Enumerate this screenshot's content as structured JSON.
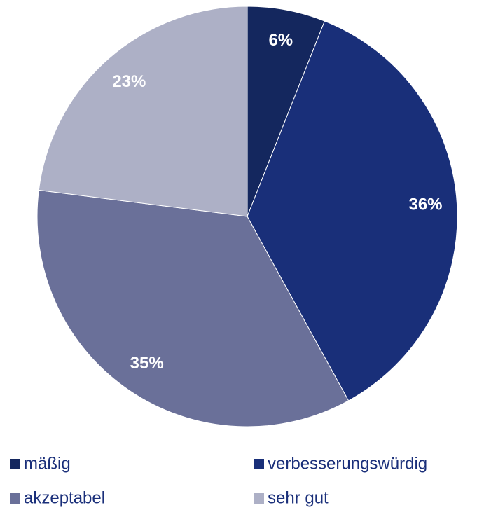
{
  "chart_data": {
    "type": "pie",
    "categories": [
      "mäßig",
      "verbesserungswürdig",
      "akzeptabel",
      "sehr gut"
    ],
    "values": [
      6,
      36,
      35,
      23
    ],
    "value_labels": [
      "6%",
      "36%",
      "35%",
      "23%"
    ],
    "colors": [
      "#14275e",
      "#192f79",
      "#6a7099",
      "#adb0c6"
    ],
    "legend": "bottom"
  }
}
